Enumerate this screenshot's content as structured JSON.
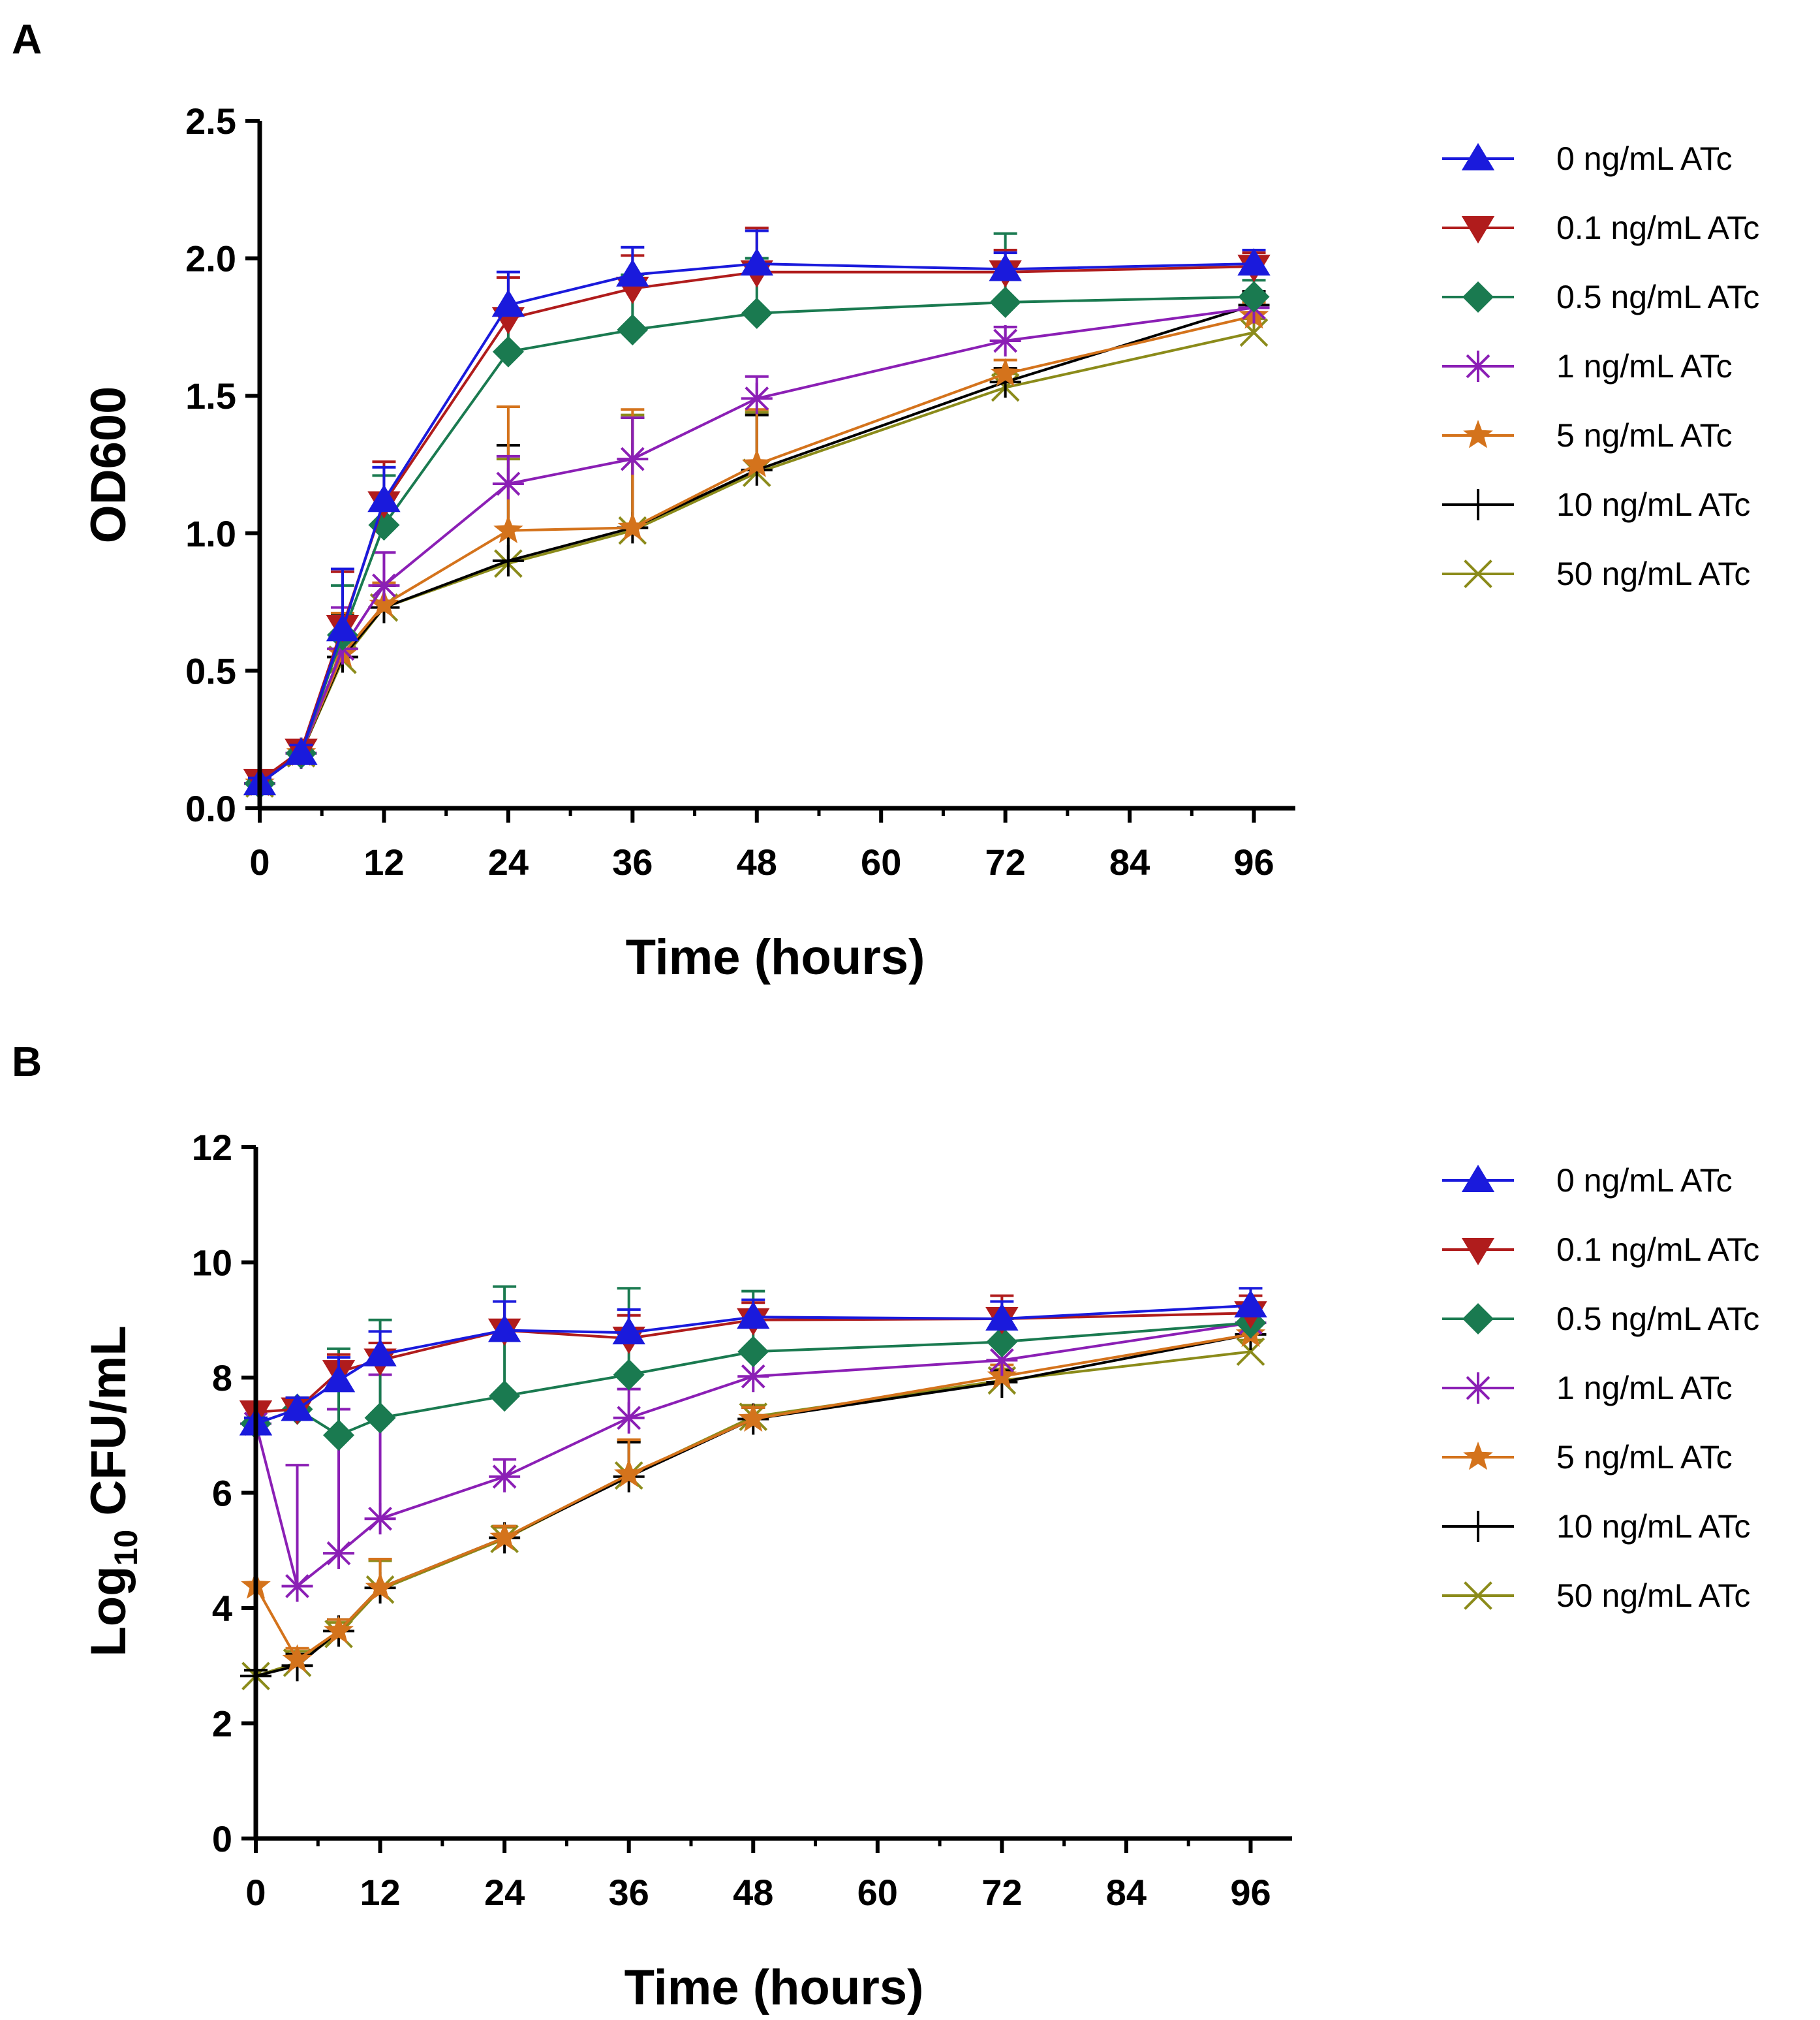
{
  "chart_data": [
    {
      "panel": "A",
      "type": "line",
      "xlabel": "Time (hours)",
      "ylabel": "OD600",
      "xlim": [
        0,
        100
      ],
      "ylim": [
        0,
        2.5
      ],
      "xticks": [
        "0",
        "12",
        "24",
        "36",
        "48",
        "60",
        "72",
        "84",
        "96"
      ],
      "yticks": [
        "0.0",
        "0.5",
        "1.0",
        "1.5",
        "2.0",
        "2.5"
      ],
      "legend_position": "right",
      "x": [
        0,
        4,
        8,
        12,
        24,
        36,
        48,
        72,
        96
      ],
      "series": [
        {
          "name": "0 ng/mL ATc",
          "color": "#1a1adc",
          "marker": "triangle-up",
          "values": [
            0.09,
            0.2,
            0.65,
            1.12,
            1.83,
            1.94,
            1.98,
            1.96,
            1.98
          ],
          "errors": [
            0.02,
            0.03,
            0.22,
            0.12,
            0.12,
            0.1,
            0.12,
            0.06,
            0.05
          ]
        },
        {
          "name": "0.1 ng/mL  ATc",
          "color": "#b01c1c",
          "marker": "triangle-down",
          "values": [
            0.1,
            0.21,
            0.66,
            1.11,
            1.78,
            1.89,
            1.95,
            1.95,
            1.97
          ],
          "errors": [
            0.02,
            0.03,
            0.2,
            0.15,
            0.15,
            0.12,
            0.16,
            0.08,
            0.05
          ]
        },
        {
          "name": "0.5 ng/mL  ATc",
          "color": "#1a7a50",
          "marker": "diamond",
          "values": [
            0.09,
            0.2,
            0.63,
            1.03,
            1.66,
            1.74,
            1.8,
            1.84,
            1.86
          ],
          "errors": [
            0.02,
            0.03,
            0.18,
            0.18,
            0.15,
            0.2,
            0.2,
            0.25,
            0.06
          ]
        },
        {
          "name": "1 ng/mL  ATc",
          "color": "#8b1fb5",
          "marker": "asterisk",
          "values": [
            0.09,
            0.2,
            0.58,
            0.81,
            1.18,
            1.27,
            1.49,
            1.7,
            1.82
          ],
          "errors": [
            0.02,
            0.03,
            0.15,
            0.12,
            0.1,
            0.15,
            0.08,
            0.05,
            0.05
          ]
        },
        {
          "name": "5 ng/mL  ATc",
          "color": "#d4731c",
          "marker": "star",
          "values": [
            0.09,
            0.2,
            0.56,
            0.74,
            1.01,
            1.02,
            1.25,
            1.58,
            1.79
          ],
          "errors": [
            0.02,
            0.03,
            0.15,
            0.08,
            0.45,
            0.43,
            0.2,
            0.05,
            0.05
          ]
        },
        {
          "name": "10 ng/mL ATc",
          "color": "#000000",
          "marker": "plus",
          "values": [
            0.09,
            0.2,
            0.55,
            0.73,
            0.9,
            1.02,
            1.23,
            1.55,
            1.83
          ],
          "errors": [
            0.02,
            0.03,
            0.15,
            0.08,
            0.42,
            0.4,
            0.2,
            0.05,
            0.05
          ]
        },
        {
          "name": "50 ng/mL  ATc",
          "color": "#8b8b1a",
          "marker": "x",
          "values": [
            0.09,
            0.2,
            0.54,
            0.73,
            0.89,
            1.01,
            1.22,
            1.53,
            1.73
          ],
          "errors": [
            0.02,
            0.03,
            0.15,
            0.08,
            0.38,
            0.42,
            0.22,
            0.05,
            0.05
          ]
        }
      ]
    },
    {
      "panel": "B",
      "type": "line",
      "xlabel": "Time (hours)",
      "ylabel": "CFU/mL",
      "ylabel_prefix": "Log",
      "ylabel_subscript": "10",
      "xlim": [
        0,
        100
      ],
      "ylim": [
        0,
        12
      ],
      "xticks": [
        "0",
        "12",
        "24",
        "36",
        "48",
        "60",
        "72",
        "84",
        "96"
      ],
      "yticks": [
        "0",
        "2",
        "4",
        "6",
        "8",
        "10",
        "12"
      ],
      "legend_position": "right",
      "x": [
        0,
        4,
        8,
        12,
        24,
        36,
        48,
        72,
        96
      ],
      "series": [
        {
          "name": "0 ng/mL  ATc",
          "color": "#1a1adc",
          "marker": "triangle-up",
          "values": [
            7.2,
            7.45,
            7.95,
            8.4,
            8.82,
            8.78,
            9.05,
            9.02,
            9.25
          ],
          "errors": [
            0.1,
            0.2,
            0.4,
            0.4,
            0.5,
            0.4,
            0.3,
            0.3,
            0.3
          ]
        },
        {
          "name": "0.1 ng/mL  ATc",
          "color": "#b01c1c",
          "marker": "triangle-down",
          "values": [
            7.4,
            7.45,
            8.1,
            8.3,
            8.82,
            8.68,
            9.0,
            9.02,
            9.12
          ],
          "errors": [
            0.1,
            0.2,
            0.3,
            0.3,
            0.5,
            0.4,
            0.3,
            0.4,
            0.3
          ]
        },
        {
          "name": "0.5 ng/mL  ATc",
          "color": "#1a7a50",
          "marker": "diamond",
          "values": [
            7.2,
            7.45,
            7.0,
            7.3,
            7.68,
            8.05,
            8.45,
            8.62,
            8.95
          ],
          "errors": [
            0.1,
            0.2,
            1.5,
            1.7,
            1.9,
            1.5,
            1.05,
            0.4,
            0.3
          ]
        },
        {
          "name": "1 ng/mL  ATc",
          "color": "#8b1fb5",
          "marker": "asterisk",
          "values": [
            7.2,
            4.38,
            4.95,
            5.55,
            6.28,
            7.3,
            8.02,
            8.3,
            8.95
          ],
          "errors": [
            0.1,
            2.1,
            2.5,
            2.5,
            0.3,
            0.5,
            0.4,
            0.3,
            0.3
          ]
        },
        {
          "name": "5 ng/mL  ATc",
          "color": "#d4731c",
          "marker": "star",
          "values": [
            4.38,
            3.1,
            3.6,
            4.35,
            5.22,
            6.32,
            7.28,
            8.02,
            8.75
          ],
          "errors": [
            2.8,
            0.2,
            0.2,
            0.5,
            0.2,
            0.6,
            0.2,
            0.2,
            0.2
          ]
        },
        {
          "name": "10 ng/mL ATc",
          "color": "#000000",
          "marker": "plus",
          "values": [
            2.82,
            3.0,
            3.6,
            4.35,
            5.22,
            6.28,
            7.28,
            7.92,
            8.75
          ],
          "errors": [
            0.1,
            0.2,
            0.2,
            0.5,
            0.2,
            0.6,
            0.2,
            0.2,
            0.2
          ]
        },
        {
          "name": "50 ng/mL  ATc",
          "color": "#8b8b1a",
          "marker": "x",
          "values": [
            2.82,
            3.05,
            3.55,
            4.32,
            5.2,
            6.3,
            7.32,
            7.95,
            8.45
          ],
          "errors": [
            0.1,
            0.2,
            0.2,
            0.5,
            0.2,
            0.6,
            0.2,
            0.2,
            0.2
          ]
        }
      ]
    }
  ]
}
